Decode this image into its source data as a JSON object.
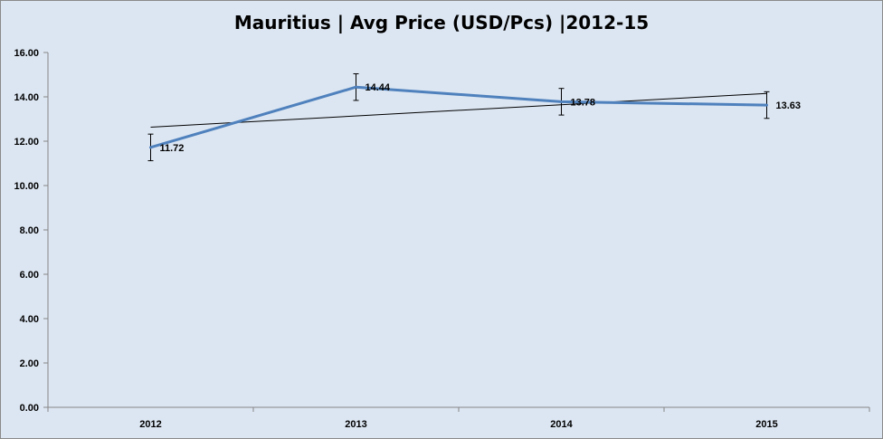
{
  "chart_data": {
    "type": "line",
    "title": "Mauritius | Avg Price (USD/Pcs) |2012-15",
    "categories": [
      "2012",
      "2013",
      "2014",
      "2015"
    ],
    "series": [
      {
        "values": [
          11.72,
          14.44,
          13.78,
          13.63
        ],
        "color": "#4f81bd"
      }
    ],
    "data_labels": [
      "11.72",
      "14.44",
      "13.78",
      "13.63"
    ],
    "error_bar_magnitude": 0.6,
    "trendline": {
      "type": "linear",
      "color": "#000000"
    },
    "ylim": [
      0,
      16
    ],
    "yticks": [
      "0.00",
      "2.00",
      "4.00",
      "6.00",
      "8.00",
      "10.00",
      "12.00",
      "14.00",
      "16.00"
    ],
    "xlabel": "",
    "ylabel": "",
    "grid": false,
    "legend": "none",
    "background": "#dce6f2"
  }
}
